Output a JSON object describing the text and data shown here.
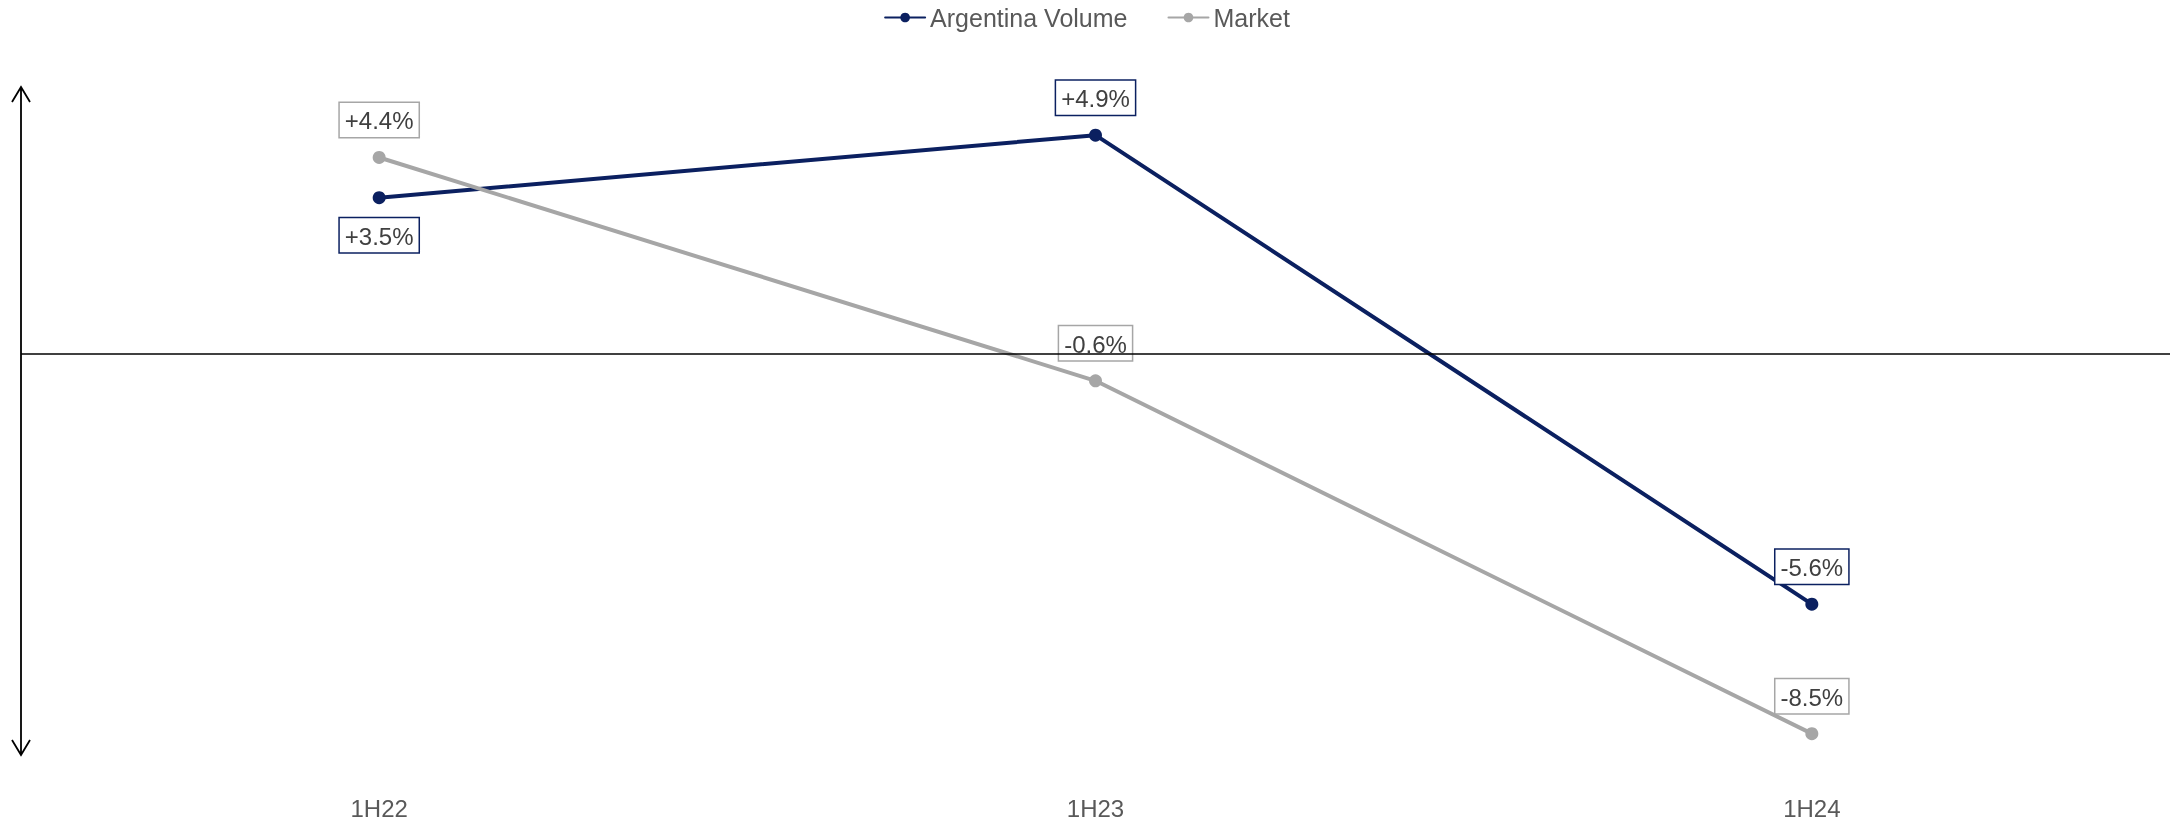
{
  "chart_data": {
    "type": "line",
    "categories": [
      "1H22",
      "1H23",
      "1H24"
    ],
    "series": [
      {
        "name": "Argentina Volume",
        "color": "#0b2060",
        "values": [
          3.5,
          4.9,
          -5.6
        ],
        "value_labels": [
          "+3.5%",
          "+4.9%",
          "-5.6%"
        ]
      },
      {
        "name": "Market",
        "color": "#a6a6a6",
        "values": [
          4.4,
          -0.6,
          -8.5
        ],
        "value_labels": [
          "+4.4%",
          "-0.6%",
          "-8.5%"
        ]
      }
    ],
    "ref_lines": [
      {
        "axis": "y",
        "value": 0,
        "color": "#000000",
        "line_style": "solid"
      }
    ],
    "legend": "top",
    "marker": "circle",
    "line_style": "solid",
    "grid": false,
    "tick_labels": "x"
  }
}
